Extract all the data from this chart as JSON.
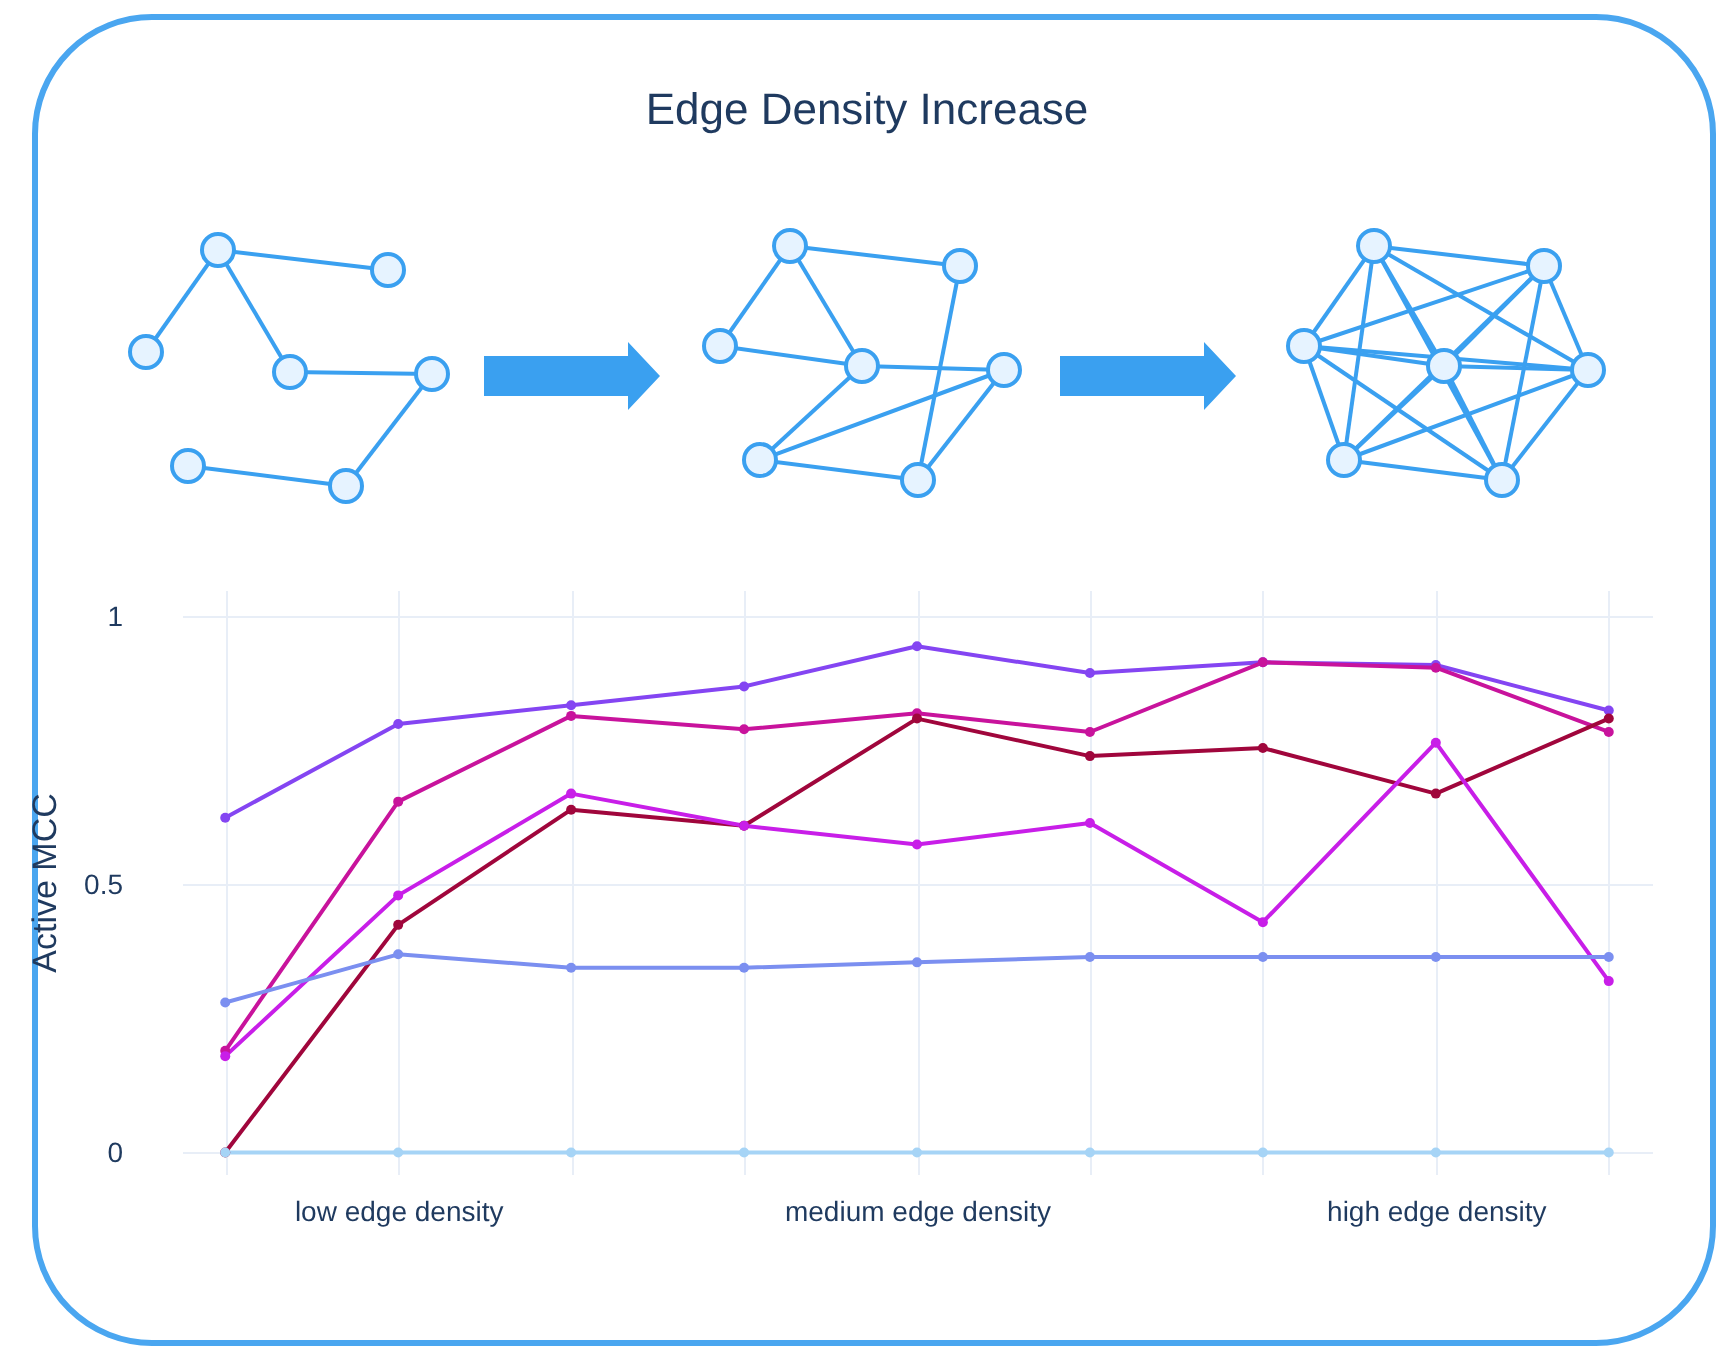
{
  "chart_data": {
    "type": "line",
    "title": "Edge Density Increase",
    "ylabel": "Active MCC",
    "categories": [
      null,
      "low edge density",
      null,
      null,
      "medium edge density",
      null,
      null,
      "high edge density",
      null
    ],
    "ylim": [
      -0.04,
      1.05
    ],
    "yticks": [
      0,
      0.5,
      1
    ],
    "grid": true,
    "marker": "circle",
    "line_style": "solid",
    "series": [
      {
        "color": "#8445f2",
        "values": [
          0.625,
          0.8,
          0.835,
          0.87,
          0.945,
          0.895,
          0.915,
          0.91,
          0.825
        ]
      },
      {
        "color": "#c8139c",
        "values": [
          0.19,
          0.655,
          0.815,
          0.79,
          0.82,
          0.785,
          0.915,
          0.905,
          0.785
        ]
      },
      {
        "color": "#a0063c",
        "values": [
          0,
          0.425,
          0.64,
          0.61,
          0.81,
          0.74,
          0.755,
          0.67,
          0.81
        ]
      },
      {
        "color": "#c81ee8",
        "values": [
          0.18,
          0.48,
          0.67,
          0.61,
          0.575,
          0.615,
          0.43,
          0.765,
          0.32
        ]
      },
      {
        "color": "#7b8ff0",
        "values": [
          0.28,
          0.37,
          0.345,
          0.345,
          0.355,
          0.365,
          0.365,
          0.365,
          0.365
        ]
      },
      {
        "color": "#a6d4f6",
        "values": [
          0,
          0,
          0,
          0,
          0,
          0,
          0,
          0,
          0
        ]
      }
    ]
  }
}
